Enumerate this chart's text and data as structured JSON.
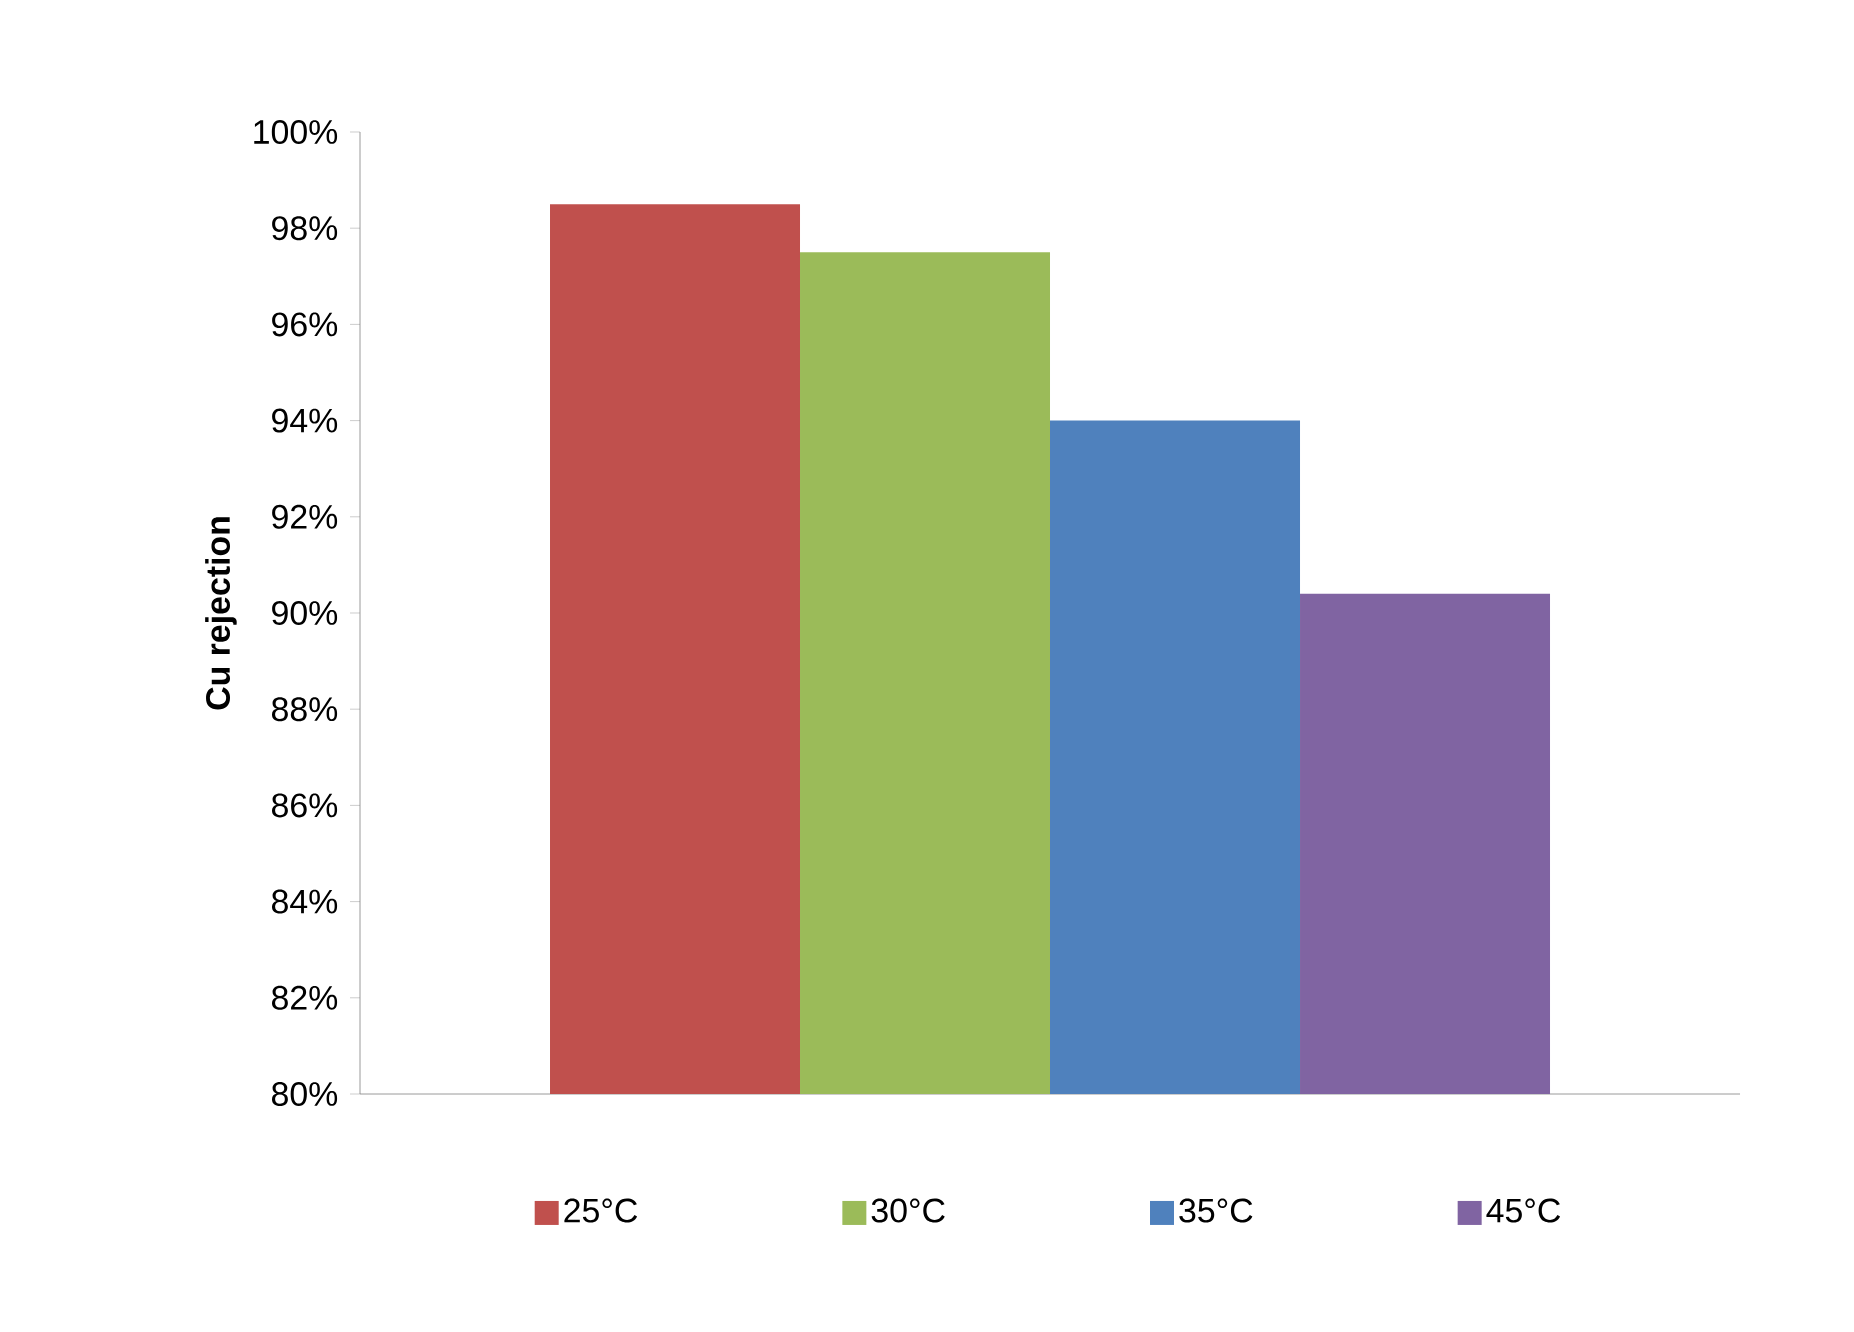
{
  "chart_data": {
    "type": "bar",
    "ylabel": "Cu rejection",
    "categories": [
      null
    ],
    "series": [
      {
        "name": "25°C",
        "color": "#c0504d",
        "values": [
          98.5
        ]
      },
      {
        "name": "30°C",
        "color": "#9bbb59",
        "values": [
          97.5
        ]
      },
      {
        "name": "35°C",
        "color": "#4f81bd",
        "values": [
          94.0
        ]
      },
      {
        "name": "45°C",
        "color": "#8064a2",
        "values": [
          90.4
        ]
      }
    ],
    "ylim": [
      80,
      100
    ],
    "yticks": [
      {
        "value": 80,
        "label": "80%"
      },
      {
        "value": 82,
        "label": "82%"
      },
      {
        "value": 84,
        "label": "84%"
      },
      {
        "value": 86,
        "label": "86%"
      },
      {
        "value": 88,
        "label": "88%"
      },
      {
        "value": 90,
        "label": "90%"
      },
      {
        "value": 92,
        "label": "92%"
      },
      {
        "value": 94,
        "label": "94%"
      },
      {
        "value": 96,
        "label": "96%"
      },
      {
        "value": 98,
        "label": "98%"
      },
      {
        "value": 100,
        "label": "100%"
      }
    ],
    "legend": "bottom"
  }
}
